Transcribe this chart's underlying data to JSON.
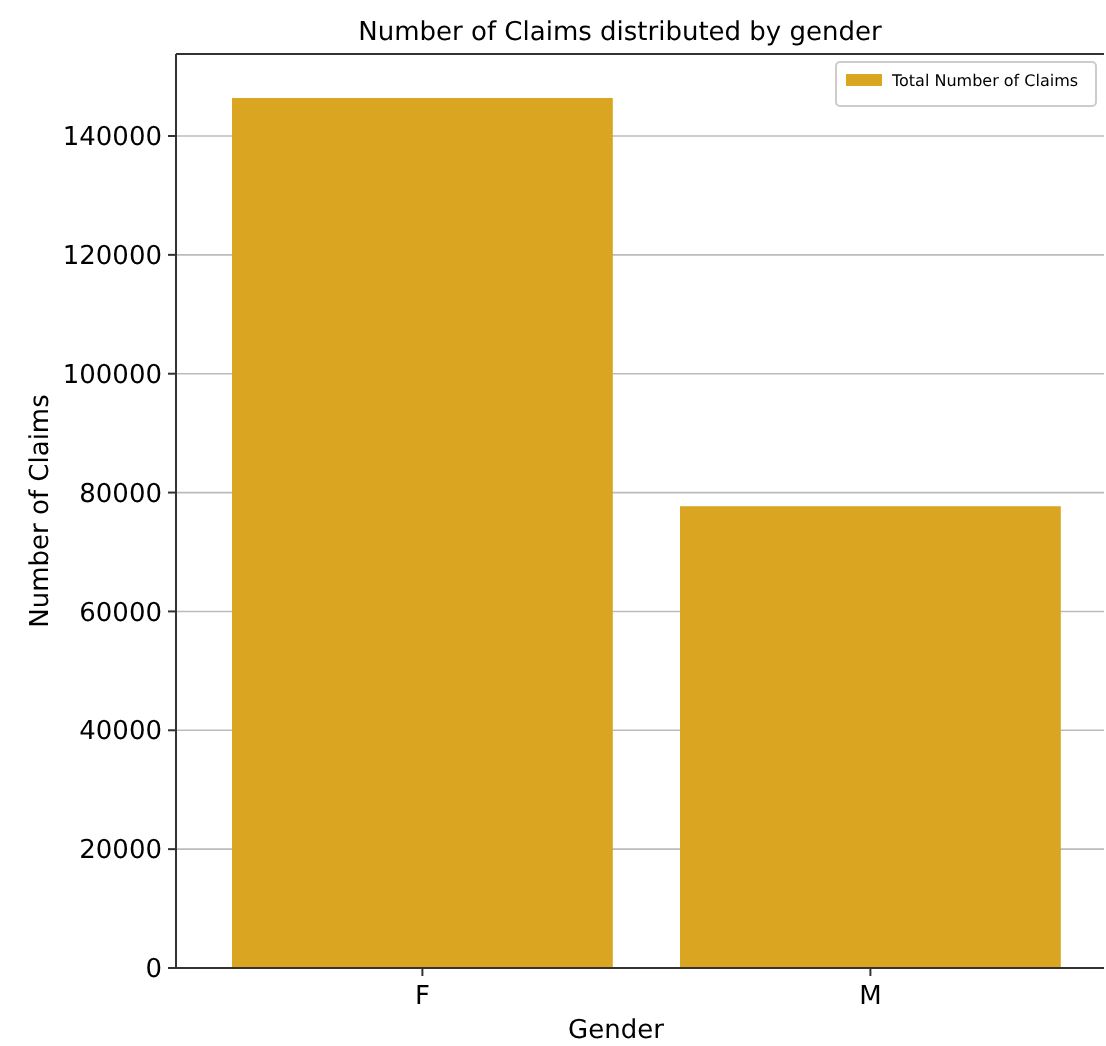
{
  "chart_data": {
    "type": "bar",
    "title": "Number of Claims distributed by gender",
    "xlabel": "Gender",
    "ylabel": "Number of Claims",
    "categories": [
      "F",
      "M"
    ],
    "series": [
      {
        "name": "Total Number of Claims",
        "color": "#daa520",
        "values": [
          146400,
          77700
        ]
      }
    ],
    "ylim": [
      0,
      153800
    ],
    "yticks": [
      0,
      20000,
      40000,
      60000,
      80000,
      100000,
      120000,
      140000
    ],
    "grid": "y",
    "legend": "top right"
  }
}
